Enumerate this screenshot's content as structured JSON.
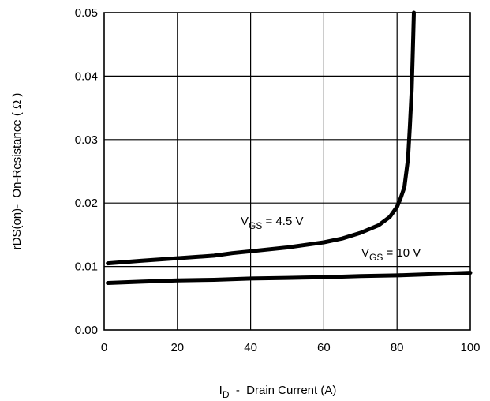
{
  "chart_data": {
    "type": "line",
    "xlim": [
      0,
      100
    ],
    "ylim": [
      0.0,
      0.05
    ],
    "x_ticks": [
      "0",
      "20",
      "40",
      "60",
      "80",
      "100"
    ],
    "y_ticks": [
      "0.00",
      "0.01",
      "0.02",
      "0.03",
      "0.04",
      "0.05"
    ],
    "xlabel_main": "I",
    "xlabel_sub": "D",
    "xlabel_rest": "  -  Drain Current (A)",
    "ylabel": "rDS(on)-  On-Resistance ( Ω )",
    "grid": true,
    "series": [
      {
        "label_main": "V",
        "label_sub": "GS",
        "label_rest": " = 4.5 V",
        "color": "#000000",
        "x": [
          1,
          10,
          20,
          30,
          35,
          40,
          50,
          60,
          65,
          70,
          75,
          78,
          80,
          81,
          82,
          83,
          83.5,
          84,
          84.3,
          84.6
        ],
        "y": [
          0.0105,
          0.0109,
          0.0113,
          0.0117,
          0.0121,
          0.0124,
          0.013,
          0.0138,
          0.0144,
          0.0153,
          0.0165,
          0.0178,
          0.0194,
          0.0208,
          0.0225,
          0.027,
          0.032,
          0.038,
          0.044,
          0.05
        ]
      },
      {
        "label_main": "V",
        "label_sub": "GS",
        "label_rest": " = 10 V",
        "color": "#000000",
        "x": [
          1,
          10,
          20,
          30,
          40,
          50,
          60,
          70,
          80,
          90,
          100
        ],
        "y": [
          0.0074,
          0.0076,
          0.0078,
          0.0079,
          0.0081,
          0.0082,
          0.0083,
          0.0085,
          0.0086,
          0.0088,
          0.009
        ]
      }
    ]
  }
}
